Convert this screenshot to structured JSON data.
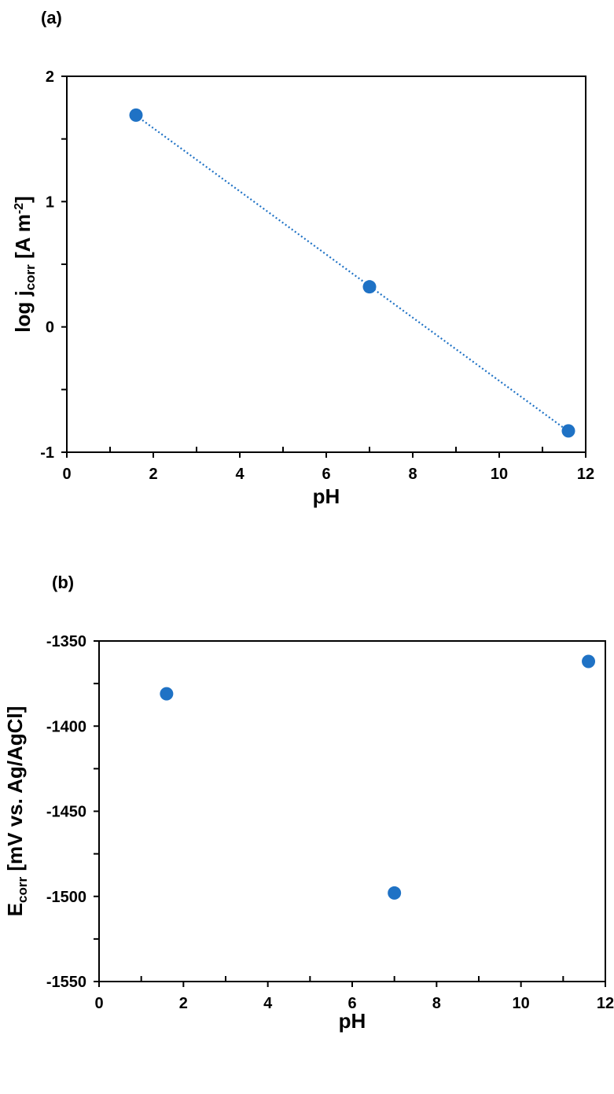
{
  "chart_data": [
    {
      "panel_label": "(a)",
      "type": "scatter",
      "x": [
        1.6,
        7.0,
        11.6
      ],
      "y": [
        1.69,
        0.32,
        -0.83
      ],
      "marker_color": "#1F72C5",
      "trendline": true,
      "trendline_style": "dotted",
      "xlabel": "pH",
      "ylabel": {
        "main": "log j",
        "sub": "corr",
        "mid": " [A m",
        "sup": "-2",
        "end": "]"
      },
      "xlim": [
        0,
        12
      ],
      "ylim": [
        -1,
        2
      ],
      "xticks": [
        0,
        2,
        4,
        6,
        8,
        10,
        12
      ],
      "yticks": [
        -1,
        0,
        1,
        2
      ],
      "x_tick_labels": [
        "0",
        "2",
        "4",
        "6",
        "8",
        "10",
        "12"
      ],
      "y_tick_labels": [
        "-1",
        "0",
        "1",
        "2"
      ],
      "grid": false,
      "legend": false
    },
    {
      "panel_label": "(b)",
      "type": "scatter",
      "x": [
        1.6,
        7.0,
        11.6
      ],
      "y": [
        -1381,
        -1498,
        -1362
      ],
      "marker_color": "#1F72C5",
      "trendline": false,
      "xlabel": "pH",
      "ylabel": {
        "main": "E",
        "sub": "corr",
        "mid": " [mV vs. Ag/AgCl]",
        "sup": "",
        "end": ""
      },
      "xlim": [
        0,
        12
      ],
      "ylim": [
        -1550,
        -1350
      ],
      "xticks": [
        0,
        2,
        4,
        6,
        8,
        10,
        12
      ],
      "yticks": [
        -1550,
        -1500,
        -1450,
        -1400,
        -1350
      ],
      "x_tick_labels": [
        "0",
        "2",
        "4",
        "6",
        "8",
        "10",
        "12"
      ],
      "y_tick_labels": [
        "-1550",
        "-1500",
        "-1450",
        "-1400",
        "-1350"
      ],
      "grid": false,
      "legend": false
    }
  ]
}
